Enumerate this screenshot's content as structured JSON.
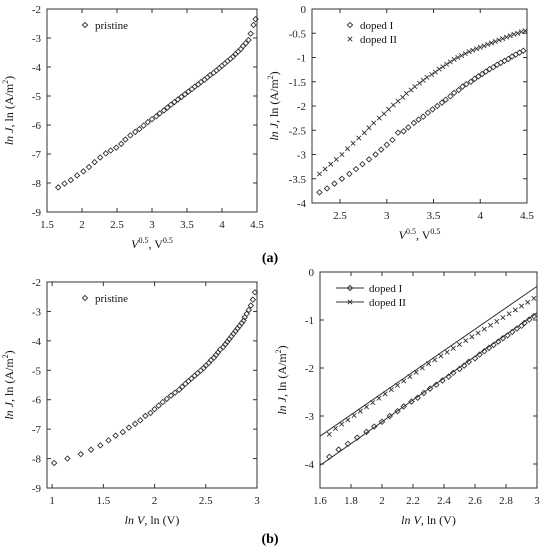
{
  "panel_labels": [
    "(a)",
    "(b)"
  ],
  "chart_data": [
    {
      "type": "scatter",
      "xlabel_main": "V",
      "xlabel_sup": "0.5",
      "xlabel_rest": ", V",
      "xlabel_sup2": "0.5",
      "ylabel_main": "ln J",
      "ylabel_rest": ", ln (A/m",
      "ylabel_sup": "2",
      "ylabel_end": ")",
      "xlim": [
        1.5,
        4.5
      ],
      "ylim": [
        -9,
        -2
      ],
      "xticks": [
        1.5,
        2,
        2.5,
        3,
        3.5,
        4,
        4.5
      ],
      "xtick_labels": [
        "1.5",
        "2",
        "2.5",
        "3",
        "3.5",
        "4",
        "4.5"
      ],
      "yticks": [
        -9,
        -8,
        -7,
        -6,
        -5,
        -4,
        -3,
        -2
      ],
      "ytick_labels": [
        "-9",
        "-8",
        "-7",
        "-6",
        "-5",
        "-4",
        "-3",
        "-2"
      ],
      "legend_position": "top-left",
      "series": [
        {
          "name": "pristine",
          "marker": "diamond",
          "line": false,
          "x": [
            1.66,
            1.75,
            1.84,
            1.93,
            2.02,
            2.1,
            2.18,
            2.26,
            2.34,
            2.41,
            2.49,
            2.56,
            2.62,
            2.69,
            2.76,
            2.82,
            2.88,
            2.94,
            3.0,
            3.06,
            3.11,
            3.17,
            3.22,
            3.27,
            3.32,
            3.37,
            3.42,
            3.47,
            3.52,
            3.57,
            3.61,
            3.66,
            3.7,
            3.75,
            3.79,
            3.83,
            3.88,
            3.92,
            3.96,
            4.0,
            4.04,
            4.08,
            4.12,
            4.16,
            4.19,
            4.23,
            4.27,
            4.3,
            4.34,
            4.38,
            4.41,
            4.45,
            4.48
          ],
          "y": [
            -8.15,
            -8.02,
            -7.9,
            -7.74,
            -7.6,
            -7.45,
            -7.28,
            -7.12,
            -6.98,
            -6.88,
            -6.78,
            -6.65,
            -6.5,
            -6.36,
            -6.24,
            -6.14,
            -6.02,
            -5.9,
            -5.8,
            -5.7,
            -5.6,
            -5.5,
            -5.4,
            -5.3,
            -5.21,
            -5.12,
            -5.03,
            -4.94,
            -4.85,
            -4.76,
            -4.68,
            -4.6,
            -4.52,
            -4.44,
            -4.36,
            -4.28,
            -4.2,
            -4.12,
            -4.04,
            -3.96,
            -3.88,
            -3.8,
            -3.72,
            -3.64,
            -3.56,
            -3.47,
            -3.38,
            -3.28,
            -3.18,
            -3.07,
            -2.85,
            -2.55,
            -2.35
          ]
        }
      ]
    },
    {
      "type": "scatter",
      "xlabel_main": "V",
      "xlabel_sup": "0.5",
      "xlabel_rest": ", V",
      "xlabel_sup2": "0.5",
      "ylabel_main": "ln J",
      "ylabel_rest": ", ln (A/m",
      "ylabel_sup": "2",
      "ylabel_end": ")",
      "xlim": [
        2.2,
        4.5
      ],
      "ylim": [
        -4,
        0
      ],
      "xticks": [
        2.5,
        3,
        3.5,
        4,
        4.5
      ],
      "xtick_labels": [
        "2.5",
        "3",
        "3.5",
        "4",
        "4.5"
      ],
      "yticks": [
        -4,
        -3.5,
        -3,
        -2.5,
        -2,
        -1.5,
        -1,
        -0.5,
        0
      ],
      "ytick_labels": [
        "-4",
        "-3.5",
        "-3",
        "-2.5",
        "-2",
        "-1.5",
        "-1",
        "-0.5",
        "0"
      ],
      "legend_position": "top-left",
      "series": [
        {
          "name": "doped I",
          "marker": "diamond",
          "line": false,
          "x": [
            2.28,
            2.36,
            2.44,
            2.52,
            2.6,
            2.67,
            2.74,
            2.81,
            2.88,
            2.94,
            3.0,
            3.06,
            3.12,
            3.18,
            3.23,
            3.29,
            3.34,
            3.39,
            3.44,
            3.49,
            3.54,
            3.59,
            3.63,
            3.68,
            3.72,
            3.77,
            3.81,
            3.85,
            3.9,
            3.94,
            3.98,
            4.02,
            4.06,
            4.1,
            4.14,
            4.18,
            4.22,
            4.26,
            4.3,
            4.34,
            4.38,
            4.42,
            4.46
          ],
          "y": [
            -3.78,
            -3.7,
            -3.6,
            -3.5,
            -3.4,
            -3.3,
            -3.2,
            -3.1,
            -3.0,
            -2.9,
            -2.8,
            -2.7,
            -2.55,
            -2.52,
            -2.44,
            -2.35,
            -2.28,
            -2.22,
            -2.14,
            -2.07,
            -2.0,
            -1.93,
            -1.87,
            -1.8,
            -1.73,
            -1.67,
            -1.6,
            -1.55,
            -1.5,
            -1.44,
            -1.39,
            -1.34,
            -1.29,
            -1.24,
            -1.2,
            -1.15,
            -1.11,
            -1.07,
            -1.03,
            -0.98,
            -0.94,
            -0.9,
            -0.86
          ]
        },
        {
          "name": "doped II",
          "marker": "x",
          "line": false,
          "x": [
            2.28,
            2.34,
            2.4,
            2.46,
            2.52,
            2.58,
            2.64,
            2.7,
            2.76,
            2.81,
            2.86,
            2.92,
            2.97,
            3.02,
            3.07,
            3.12,
            3.17,
            3.21,
            3.26,
            3.3,
            3.35,
            3.39,
            3.43,
            3.48,
            3.52,
            3.56,
            3.6,
            3.64,
            3.68,
            3.72,
            3.76,
            3.8,
            3.84,
            3.88,
            3.92,
            3.96,
            4.0,
            4.04,
            4.08,
            4.12,
            4.16,
            4.2,
            4.24,
            4.28,
            4.32,
            4.36,
            4.4,
            4.44,
            4.48
          ],
          "y": [
            -3.4,
            -3.3,
            -3.2,
            -3.1,
            -3.0,
            -2.88,
            -2.77,
            -2.66,
            -2.55,
            -2.45,
            -2.35,
            -2.25,
            -2.16,
            -2.07,
            -1.98,
            -1.9,
            -1.82,
            -1.74,
            -1.67,
            -1.6,
            -1.53,
            -1.47,
            -1.41,
            -1.35,
            -1.3,
            -1.24,
            -1.19,
            -1.14,
            -1.09,
            -1.04,
            -1.0,
            -0.96,
            -0.92,
            -0.88,
            -0.85,
            -0.82,
            -0.79,
            -0.76,
            -0.73,
            -0.7,
            -0.67,
            -0.64,
            -0.61,
            -0.58,
            -0.55,
            -0.52,
            -0.5,
            -0.47,
            -0.45
          ]
        }
      ]
    },
    {
      "type": "scatter",
      "xlabel_main": "ln V",
      "xlabel_rest": ", ln (V)",
      "ylabel_main": "ln J",
      "ylabel_rest": ", ln (A/m",
      "ylabel_sup": "2",
      "ylabel_end": ")",
      "xlim": [
        0.95,
        3
      ],
      "ylim": [
        -9,
        -2
      ],
      "xticks": [
        1,
        1.5,
        2,
        2.5,
        3
      ],
      "xtick_labels": [
        "1",
        "1.5",
        "2",
        "2.5",
        "3"
      ],
      "yticks": [
        -9,
        -8,
        -7,
        -6,
        -5,
        -4,
        -3,
        -2
      ],
      "ytick_labels": [
        "-9",
        "-8",
        "-7",
        "-6",
        "-5",
        "-4",
        "-3",
        "-2"
      ],
      "legend_position": "top-left",
      "series": [
        {
          "name": "pristine",
          "marker": "diamond",
          "line": false,
          "x": [
            1.02,
            1.15,
            1.28,
            1.38,
            1.47,
            1.55,
            1.62,
            1.69,
            1.75,
            1.81,
            1.86,
            1.91,
            1.96,
            2.0,
            2.04,
            2.08,
            2.12,
            2.16,
            2.2,
            2.24,
            2.27,
            2.3,
            2.33,
            2.36,
            2.39,
            2.42,
            2.45,
            2.48,
            2.5,
            2.53,
            2.55,
            2.58,
            2.6,
            2.62,
            2.64,
            2.67,
            2.69,
            2.71,
            2.73,
            2.75,
            2.77,
            2.79,
            2.81,
            2.83,
            2.85,
            2.87,
            2.88,
            2.9,
            2.92,
            2.94,
            2.96,
            2.98
          ],
          "y": [
            -8.15,
            -8.0,
            -7.85,
            -7.7,
            -7.55,
            -7.38,
            -7.22,
            -7.1,
            -6.95,
            -6.82,
            -6.7,
            -6.55,
            -6.45,
            -6.32,
            -6.2,
            -6.08,
            -5.97,
            -5.86,
            -5.76,
            -5.66,
            -5.56,
            -5.46,
            -5.37,
            -5.28,
            -5.19,
            -5.1,
            -5.01,
            -4.92,
            -4.84,
            -4.75,
            -4.66,
            -4.57,
            -4.48,
            -4.39,
            -4.3,
            -4.21,
            -4.12,
            -4.03,
            -3.94,
            -3.85,
            -3.76,
            -3.67,
            -3.58,
            -3.49,
            -3.4,
            -3.31,
            -3.2,
            -3.08,
            -2.95,
            -2.8,
            -2.6,
            -2.35
          ]
        }
      ]
    },
    {
      "type": "scatter",
      "xlabel_main": "ln V",
      "xlabel_rest": ", ln (V)",
      "ylabel_main": "ln J",
      "ylabel_rest": ", ln (A/m",
      "ylabel_sup": "2",
      "ylabel_end": ")",
      "xlim": [
        1.6,
        3
      ],
      "ylim": [
        -4.5,
        0
      ],
      "xticks": [
        1.6,
        1.8,
        2,
        2.2,
        2.4,
        2.6,
        2.8,
        3
      ],
      "xtick_labels": [
        "1.6",
        "1.8",
        "2",
        "2.2",
        "2.4",
        "2.6",
        "2.8",
        "3"
      ],
      "yticks": [
        -4,
        -3,
        -2,
        -1,
        0
      ],
      "ytick_labels": [
        "-4",
        "-3",
        "-2",
        "-1",
        "0"
      ],
      "legend_position": "top-left",
      "series": [
        {
          "name": "doped I",
          "marker": "diamond",
          "line": true,
          "fit": [
            [
              1.6,
              -4.03
            ],
            [
              3.0,
              -0.85
            ]
          ],
          "x": [
            1.66,
            1.72,
            1.78,
            1.84,
            1.9,
            1.95,
            2.0,
            2.05,
            2.1,
            2.14,
            2.19,
            2.23,
            2.27,
            2.31,
            2.35,
            2.39,
            2.43,
            2.46,
            2.5,
            2.53,
            2.56,
            2.6,
            2.63,
            2.66,
            2.69,
            2.72,
            2.75,
            2.78,
            2.81,
            2.84,
            2.87,
            2.9,
            2.92,
            2.95,
            2.98
          ],
          "y": [
            -3.85,
            -3.7,
            -3.58,
            -3.45,
            -3.33,
            -3.22,
            -3.12,
            -3.0,
            -2.9,
            -2.8,
            -2.7,
            -2.62,
            -2.52,
            -2.43,
            -2.35,
            -2.26,
            -2.18,
            -2.1,
            -2.02,
            -1.95,
            -1.87,
            -1.8,
            -1.72,
            -1.65,
            -1.58,
            -1.52,
            -1.45,
            -1.38,
            -1.32,
            -1.25,
            -1.18,
            -1.12,
            -1.06,
            -0.99,
            -0.92
          ]
        },
        {
          "name": "doped II",
          "marker": "x",
          "line": true,
          "fit": [
            [
              1.6,
              -3.42
            ],
            [
              3.0,
              -0.3
            ]
          ],
          "x": [
            1.66,
            1.7,
            1.74,
            1.78,
            1.82,
            1.86,
            1.9,
            1.94,
            1.98,
            2.02,
            2.06,
            2.1,
            2.14,
            2.18,
            2.22,
            2.26,
            2.3,
            2.34,
            2.38,
            2.42,
            2.46,
            2.5,
            2.54,
            2.58,
            2.62,
            2.66,
            2.7,
            2.74,
            2.78,
            2.82,
            2.86,
            2.9,
            2.94,
            2.98
          ],
          "y": [
            -3.38,
            -3.26,
            -3.17,
            -3.08,
            -2.99,
            -2.9,
            -2.81,
            -2.72,
            -2.63,
            -2.54,
            -2.45,
            -2.36,
            -2.27,
            -2.18,
            -2.09,
            -2.0,
            -1.91,
            -1.83,
            -1.75,
            -1.67,
            -1.59,
            -1.51,
            -1.43,
            -1.35,
            -1.27,
            -1.19,
            -1.11,
            -1.03,
            -0.95,
            -0.87,
            -0.79,
            -0.71,
            -0.63,
            -0.55
          ]
        }
      ]
    }
  ]
}
